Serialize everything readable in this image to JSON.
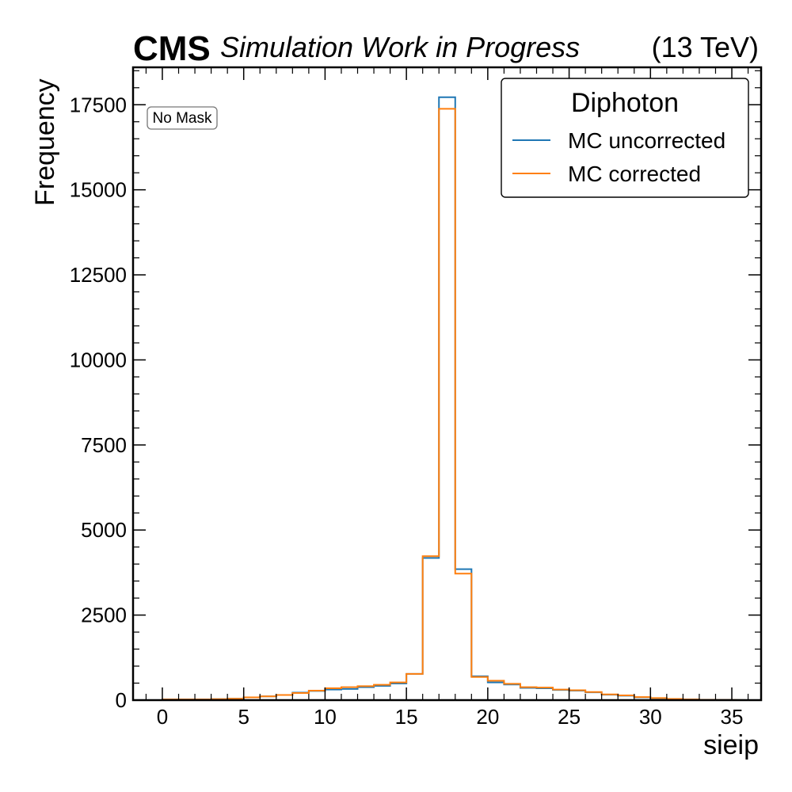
{
  "header": {
    "experiment": "CMS",
    "status": "Simulation Work in Progress",
    "energy": "(13 TeV)"
  },
  "chart_data": {
    "type": "histogram",
    "xlabel": "sieip",
    "ylabel": "Frequency",
    "xlim": [
      -1.8,
      36.8
    ],
    "ylim": [
      0,
      18600
    ],
    "xticks": [
      0,
      5,
      10,
      15,
      20,
      25,
      30,
      35
    ],
    "yticks": [
      0,
      2500,
      5000,
      7500,
      10000,
      12500,
      15000,
      17500
    ],
    "xtick_labels": [
      "0",
      "5",
      "10",
      "15",
      "20",
      "25",
      "30",
      "35"
    ],
    "ytick_labels": [
      "0",
      "2500",
      "5000",
      "7500",
      "10000",
      "12500",
      "15000",
      "17500"
    ],
    "bin_edges": [
      0,
      1,
      2,
      3,
      4,
      5,
      6,
      7,
      8,
      9,
      10,
      11,
      12,
      13,
      14,
      15,
      16,
      17,
      18,
      19,
      20,
      21,
      22,
      23,
      24,
      25,
      26,
      27,
      28,
      29,
      30,
      31,
      32,
      33,
      34,
      35
    ],
    "legend_title": "Diphoton",
    "legend_position": "upper right",
    "annotation": "No Mask",
    "series": [
      {
        "name": "MC uncorrected",
        "color": "#1f77b4",
        "values": [
          20,
          20,
          20,
          30,
          40,
          80,
          110,
          150,
          220,
          270,
          310,
          330,
          380,
          420,
          490,
          770,
          4180,
          17720,
          3850,
          700,
          520,
          460,
          360,
          350,
          300,
          280,
          230,
          160,
          130,
          80,
          50,
          30,
          20,
          10,
          5
        ]
      },
      {
        "name": "MC corrected",
        "color": "#ff7f0e",
        "values": [
          20,
          20,
          20,
          30,
          40,
          80,
          110,
          150,
          210,
          280,
          350,
          380,
          410,
          450,
          520,
          770,
          4230,
          17380,
          3720,
          680,
          570,
          480,
          380,
          370,
          310,
          290,
          240,
          170,
          140,
          90,
          60,
          35,
          20,
          10,
          5
        ]
      }
    ]
  }
}
